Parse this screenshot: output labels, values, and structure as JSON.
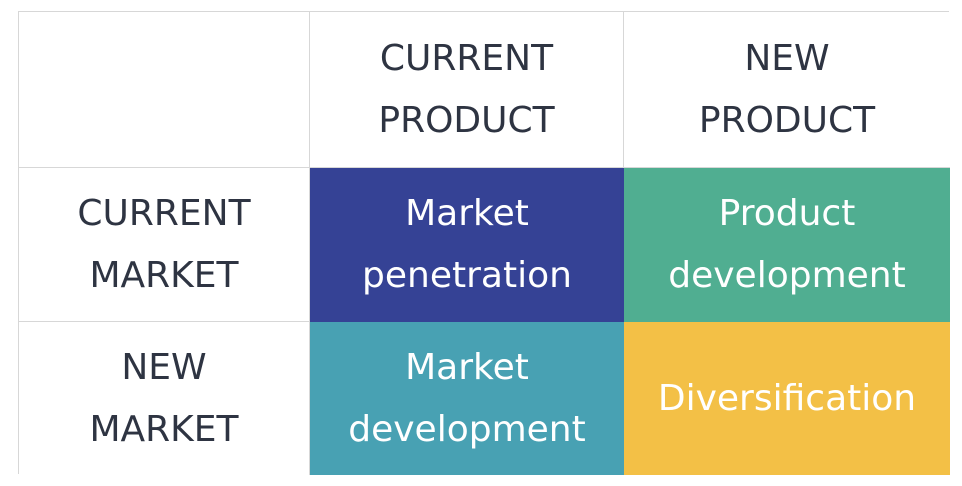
{
  "matrix": {
    "corner": "",
    "columns": [
      "CURRENT\nPRODUCT",
      "NEW\nPRODUCT"
    ],
    "rows": [
      {
        "label": "CURRENT\nMARKET",
        "cells": [
          {
            "text": "Market\npenetration",
            "color": "#354295"
          },
          {
            "text": "Product\ndevelopment",
            "color": "#50ae91"
          }
        ]
      },
      {
        "label": "NEW\nMARKET",
        "cells": [
          {
            "text": "Market\ndevelopment",
            "color": "#48a1b3"
          },
          {
            "text": "Diversification",
            "color": "#f3c046"
          }
        ]
      }
    ]
  }
}
